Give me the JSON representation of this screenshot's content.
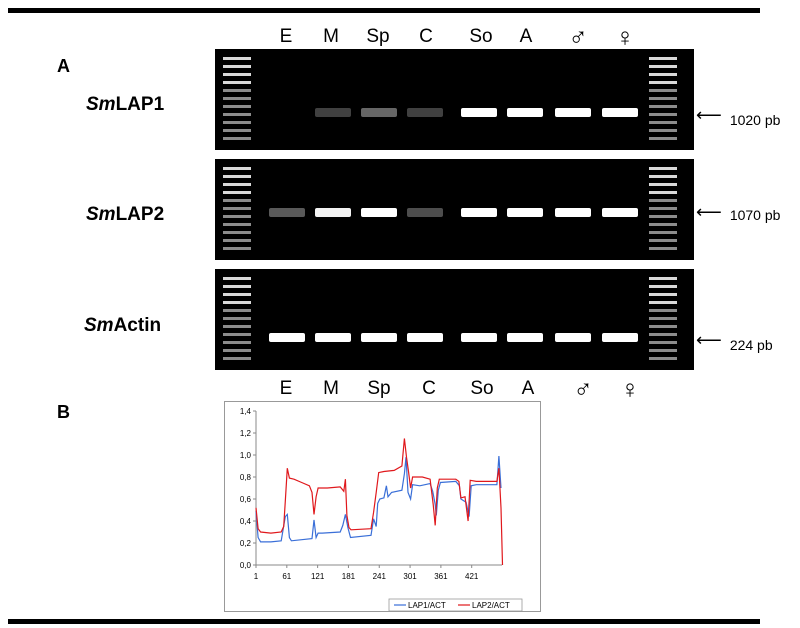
{
  "lanes": [
    "E",
    "M",
    "Sp",
    "C",
    "So",
    "A",
    "♂",
    "♀"
  ],
  "panelA": {
    "letter": "A",
    "gels": [
      {
        "gene_prefix": "Sm",
        "gene_suffix": "LAP1",
        "marker_label": "1020 pb",
        "band_intensity": [
          0.0,
          0.25,
          0.4,
          0.25,
          1.0,
          1.0,
          1.0,
          1.0
        ]
      },
      {
        "gene_prefix": "Sm",
        "gene_suffix": "LAP2",
        "marker_label": "1070 pb",
        "band_intensity": [
          0.35,
          0.95,
          1.0,
          0.3,
          1.0,
          1.0,
          1.0,
          1.0
        ]
      },
      {
        "gene_prefix": "Sm",
        "gene_suffix": "Actin",
        "marker_label": "224 pb",
        "band_intensity": [
          1.0,
          1.0,
          1.0,
          1.0,
          1.0,
          1.0,
          1.0,
          1.0
        ]
      }
    ]
  },
  "panelB": {
    "letter": "B",
    "chart_data": {
      "type": "line",
      "title": "",
      "xlabel": "",
      "ylabel": "",
      "ylim": [
        0,
        1.4
      ],
      "xlim": [
        1,
        480
      ],
      "yticks": [
        "0,0",
        "0,2",
        "0,4",
        "0,6",
        "0,8",
        "1,0",
        "1,2",
        "1,4"
      ],
      "xticks": [
        "1",
        "61",
        "121",
        "181",
        "241",
        "301",
        "361",
        "421"
      ],
      "grid": "off",
      "legend": "bottom-center",
      "series": [
        {
          "name": "LAP1/ACT",
          "color": "#3a6fd8",
          "points": [
            [
              1,
              0.49
            ],
            [
              5,
              0.25
            ],
            [
              10,
              0.21
            ],
            [
              30,
              0.21
            ],
            [
              50,
              0.22
            ],
            [
              58,
              0.44
            ],
            [
              62,
              0.46
            ],
            [
              66,
              0.25
            ],
            [
              70,
              0.22
            ],
            [
              110,
              0.24
            ],
            [
              114,
              0.41
            ],
            [
              118,
              0.25
            ],
            [
              122,
              0.29
            ],
            [
              130,
              0.29
            ],
            [
              165,
              0.3
            ],
            [
              170,
              0.36
            ],
            [
              175,
              0.46
            ],
            [
              180,
              0.34
            ],
            [
              185,
              0.25
            ],
            [
              225,
              0.27
            ],
            [
              230,
              0.42
            ],
            [
              235,
              0.35
            ],
            [
              238,
              0.56
            ],
            [
              242,
              0.6
            ],
            [
              250,
              0.61
            ],
            [
              255,
              0.72
            ],
            [
              258,
              0.62
            ],
            [
              265,
              0.66
            ],
            [
              285,
              0.68
            ],
            [
              290,
              0.83
            ],
            [
              293,
              0.98
            ],
            [
              297,
              0.66
            ],
            [
              302,
              0.6
            ],
            [
              306,
              0.73
            ],
            [
              320,
              0.72
            ],
            [
              340,
              0.74
            ],
            [
              345,
              0.67
            ],
            [
              350,
              0.55
            ],
            [
              352,
              0.45
            ],
            [
              356,
              0.68
            ],
            [
              360,
              0.75
            ],
            [
              390,
              0.76
            ],
            [
              397,
              0.72
            ],
            [
              400,
              0.6
            ],
            [
              410,
              0.57
            ],
            [
              416,
              0.44
            ],
            [
              420,
              0.72
            ],
            [
              430,
              0.73
            ],
            [
              465,
              0.73
            ],
            [
              470,
              0.73
            ],
            [
              474,
              0.99
            ],
            [
              478,
              0.7
            ]
          ]
        },
        {
          "name": "LAP2/ACT",
          "color": "#e0181c",
          "points": [
            [
              1,
              0.52
            ],
            [
              5,
              0.33
            ],
            [
              10,
              0.3
            ],
            [
              30,
              0.29
            ],
            [
              50,
              0.3
            ],
            [
              55,
              0.35
            ],
            [
              58,
              0.58
            ],
            [
              62,
              0.88
            ],
            [
              66,
              0.79
            ],
            [
              75,
              0.78
            ],
            [
              90,
              0.75
            ],
            [
              105,
              0.72
            ],
            [
              110,
              0.66
            ],
            [
              114,
              0.46
            ],
            [
              118,
              0.62
            ],
            [
              122,
              0.7
            ],
            [
              140,
              0.7
            ],
            [
              165,
              0.71
            ],
            [
              172,
              0.67
            ],
            [
              175,
              0.78
            ],
            [
              178,
              0.45
            ],
            [
              182,
              0.34
            ],
            [
              186,
              0.32
            ],
            [
              225,
              0.33
            ],
            [
              230,
              0.48
            ],
            [
              235,
              0.66
            ],
            [
              240,
              0.84
            ],
            [
              250,
              0.85
            ],
            [
              270,
              0.86
            ],
            [
              285,
              0.9
            ],
            [
              290,
              1.15
            ],
            [
              294,
              0.98
            ],
            [
              298,
              0.85
            ],
            [
              302,
              0.7
            ],
            [
              306,
              0.8
            ],
            [
              325,
              0.8
            ],
            [
              340,
              0.78
            ],
            [
              346,
              0.55
            ],
            [
              350,
              0.36
            ],
            [
              354,
              0.7
            ],
            [
              358,
              0.78
            ],
            [
              390,
              0.78
            ],
            [
              396,
              0.76
            ],
            [
              400,
              0.61
            ],
            [
              408,
              0.62
            ],
            [
              414,
              0.4
            ],
            [
              418,
              0.77
            ],
            [
              430,
              0.76
            ],
            [
              465,
              0.76
            ],
            [
              470,
              0.76
            ],
            [
              474,
              0.88
            ],
            [
              478,
              0.52
            ],
            [
              481,
              0.0
            ]
          ]
        }
      ]
    }
  }
}
